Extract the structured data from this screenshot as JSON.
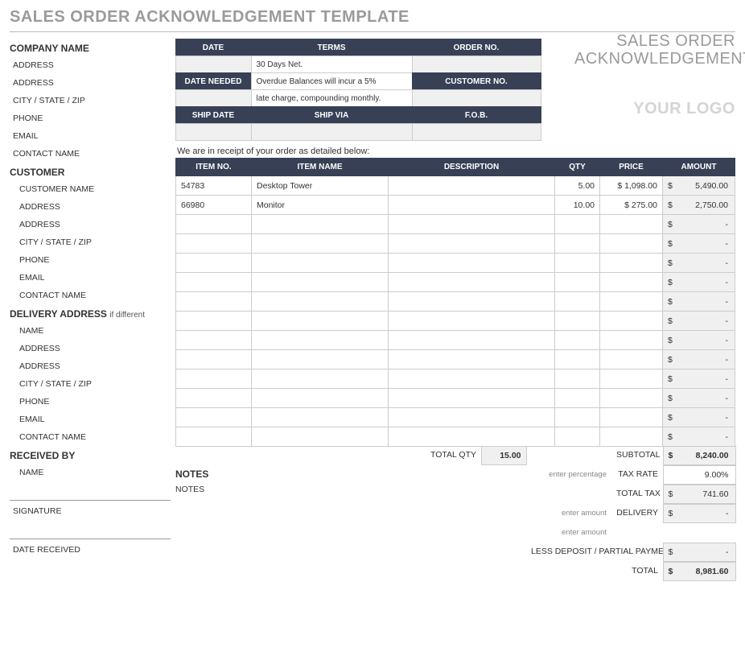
{
  "colors": {
    "header_bg": "#374055",
    "header_fg": "#ffffff",
    "muted_bg": "#f0f0f0",
    "border": "#cccccc",
    "title_gray": "#9a9a9a",
    "logo_gray": "#d4d4d4"
  },
  "page_title": "SALES ORDER ACKNOWLEDGEMENT TEMPLATE",
  "main_title_line1": "SALES ORDER",
  "main_title_line2": "ACKNOWLEDGEMENT",
  "logo_text": "YOUR LOGO",
  "company": {
    "heading": "COMPANY NAME",
    "fields": [
      "ADDRESS",
      "ADDRESS",
      "CITY / STATE / ZIP",
      "PHONE",
      "EMAIL",
      "CONTACT NAME"
    ]
  },
  "customer": {
    "heading": "CUSTOMER",
    "fields": [
      "CUSTOMER NAME",
      "ADDRESS",
      "ADDRESS",
      "CITY / STATE / ZIP",
      "PHONE",
      "EMAIL",
      "CONTACT NAME"
    ]
  },
  "delivery": {
    "heading": "DELIVERY ADDRESS",
    "sub": "if different",
    "fields": [
      "NAME",
      "ADDRESS",
      "ADDRESS",
      "CITY / STATE / ZIP",
      "PHONE",
      "EMAIL",
      "CONTACT NAME"
    ]
  },
  "received": {
    "heading": "RECEIVED BY",
    "name_label": "NAME",
    "signature_label": "SIGNATURE",
    "date_label": "DATE RECEIVED"
  },
  "meta_headers": {
    "date": "DATE",
    "terms": "TERMS",
    "order_no": "ORDER NO.",
    "date_needed": "DATE NEEDED",
    "customer_no": "CUSTOMER NO.",
    "ship_date": "SHIP DATE",
    "ship_via": "SHIP VIA",
    "fob": "F.O.B."
  },
  "meta_values": {
    "terms_line1": "30 Days Net.",
    "terms_line2": "Overdue Balances will incur a 5%",
    "terms_line3": "late charge, compounding monthly."
  },
  "receipt_line": "We are in receipt of your order as detailed below:",
  "items_headers": {
    "item_no": "ITEM NO.",
    "item_name": "ITEM NAME",
    "description": "DESCRIPTION",
    "qty": "QTY",
    "price": "PRICE",
    "amount": "AMOUNT"
  },
  "items": [
    {
      "no": "54783",
      "name": "Desktop Tower",
      "desc": "",
      "qty": "5.00",
      "price": "$   1,098.00",
      "amount": "5,490.00"
    },
    {
      "no": "66980",
      "name": "Monitor",
      "desc": "",
      "qty": "10.00",
      "price": "$      275.00",
      "amount": "2,750.00"
    },
    {
      "no": "",
      "name": "",
      "desc": "",
      "qty": "",
      "price": "",
      "amount": "-"
    },
    {
      "no": "",
      "name": "",
      "desc": "",
      "qty": "",
      "price": "",
      "amount": "-"
    },
    {
      "no": "",
      "name": "",
      "desc": "",
      "qty": "",
      "price": "",
      "amount": "-"
    },
    {
      "no": "",
      "name": "",
      "desc": "",
      "qty": "",
      "price": "",
      "amount": "-"
    },
    {
      "no": "",
      "name": "",
      "desc": "",
      "qty": "",
      "price": "",
      "amount": "-"
    },
    {
      "no": "",
      "name": "",
      "desc": "",
      "qty": "",
      "price": "",
      "amount": "-"
    },
    {
      "no": "",
      "name": "",
      "desc": "",
      "qty": "",
      "price": "",
      "amount": "-"
    },
    {
      "no": "",
      "name": "",
      "desc": "",
      "qty": "",
      "price": "",
      "amount": "-"
    },
    {
      "no": "",
      "name": "",
      "desc": "",
      "qty": "",
      "price": "",
      "amount": "-"
    },
    {
      "no": "",
      "name": "",
      "desc": "",
      "qty": "",
      "price": "",
      "amount": "-"
    },
    {
      "no": "",
      "name": "",
      "desc": "",
      "qty": "",
      "price": "",
      "amount": "-"
    },
    {
      "no": "",
      "name": "",
      "desc": "",
      "qty": "",
      "price": "",
      "amount": "-"
    }
  ],
  "notes": {
    "heading": "NOTES",
    "label": "NOTES"
  },
  "totals": {
    "total_qty_label": "TOTAL QTY",
    "total_qty": "15.00",
    "subtotal_label": "SUBTOTAL",
    "subtotal": "8,240.00",
    "tax_rate_hint": "enter percentage",
    "tax_rate_label": "TAX RATE",
    "tax_rate": "9.00%",
    "total_tax_label": "TOTAL TAX",
    "total_tax": "741.60",
    "delivery_hint": "enter amount",
    "delivery_label": "DELIVERY",
    "delivery": "-",
    "less_hint": "enter amount",
    "less_label": "LESS DEPOSIT / PARTIAL PAYMENT",
    "less": "-",
    "total_label": "TOTAL",
    "total": "8,981.60"
  },
  "currency": "$"
}
